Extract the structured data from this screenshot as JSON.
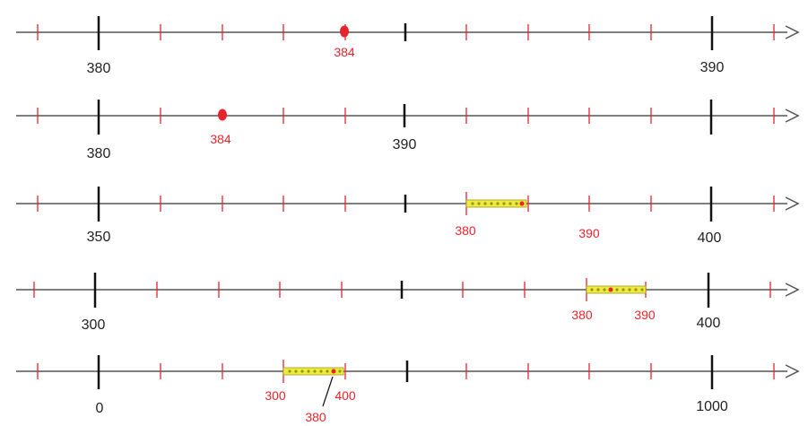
{
  "colors": {
    "axis": "#555555",
    "major_tick": "#111111",
    "minor_tick": "#e8242b",
    "point": "#e8242b",
    "segment_fill": "#f2ea3a",
    "segment_dot": "#8a9a1a",
    "label_black": "#222222",
    "label_red": "#e8242b"
  },
  "lines": [
    {
      "major_labels": [
        "380",
        "390"
      ],
      "point_label": "384"
    },
    {
      "major_labels": [
        "380",
        "390"
      ],
      "point_label": "384"
    },
    {
      "major_labels": [
        "350",
        "400"
      ],
      "range_labels": [
        "380",
        "390"
      ]
    },
    {
      "major_labels": [
        "300",
        "400"
      ],
      "range_labels": [
        "380",
        "390"
      ]
    },
    {
      "major_labels": [
        "0",
        "1000"
      ],
      "range_labels": [
        "300",
        "400"
      ],
      "point_label": "380"
    }
  ]
}
